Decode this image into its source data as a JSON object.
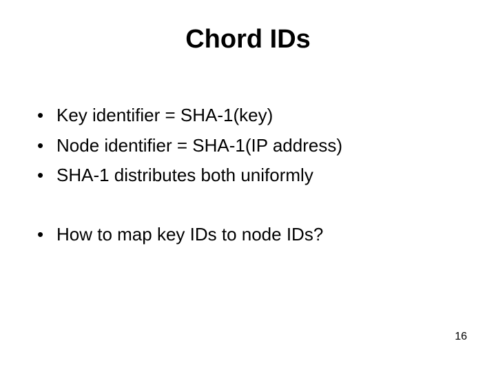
{
  "slide": {
    "title": "Chord IDs",
    "title_fontsize": 38,
    "bullet_fontsize": 26,
    "pagenum_fontsize": 16,
    "text_color": "#000000",
    "background_color": "#ffffff",
    "group1": [
      "Key identifier = SHA-1(key)",
      "Node identifier = SHA-1(IP address)",
      "SHA-1 distributes both uniformly"
    ],
    "group2": [
      "How to map key IDs to node IDs?"
    ],
    "page_number": "16"
  }
}
